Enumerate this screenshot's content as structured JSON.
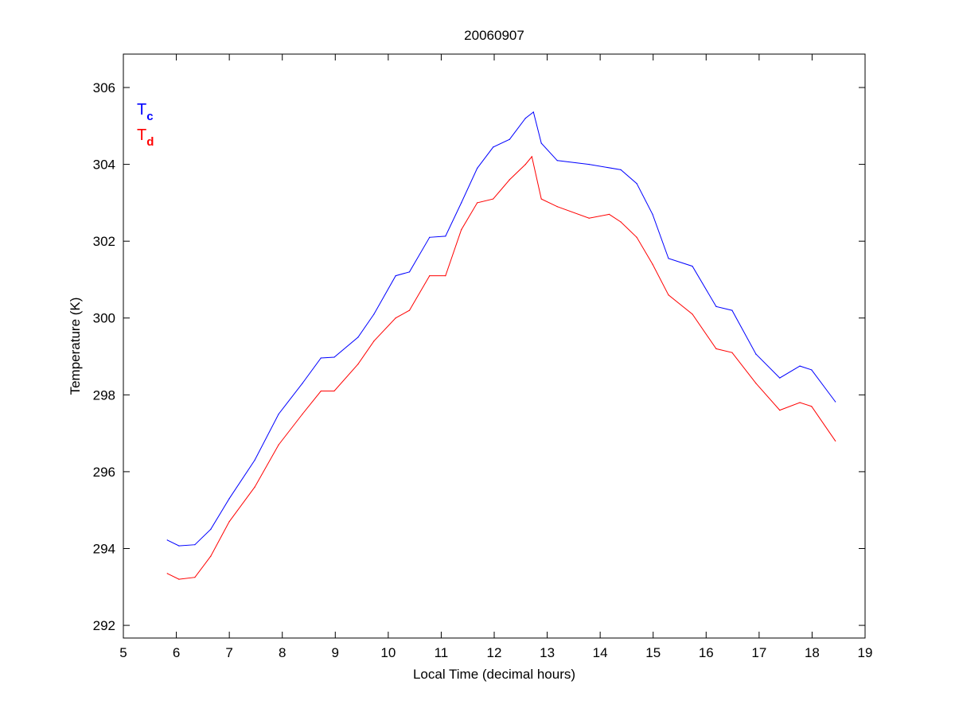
{
  "chart_data": {
    "type": "line",
    "title": "20060907",
    "xlabel": "Local Time (decimal hours)",
    "ylabel": "Temperature (K)",
    "xlim": [
      5,
      19
    ],
    "ylim": [
      291.67,
      306.87
    ],
    "xticks": [
      5,
      6,
      7,
      8,
      9,
      10,
      11,
      12,
      13,
      14,
      15,
      16,
      17,
      18,
      19
    ],
    "yticks": [
      292,
      294,
      296,
      298,
      300,
      302,
      304,
      306
    ],
    "grid": false,
    "legend_placement": "top-left",
    "series": [
      {
        "name": "T",
        "subscript": "c",
        "color": "#0000ff",
        "x": [
          5.83,
          6.05,
          6.35,
          6.65,
          7.0,
          7.48,
          7.93,
          8.38,
          8.73,
          8.98,
          9.43,
          9.73,
          10.14,
          10.4,
          10.78,
          11.08,
          11.38,
          11.68,
          11.98,
          12.29,
          12.59,
          12.74,
          12.89,
          13.19,
          13.79,
          14.39,
          14.69,
          14.99,
          15.29,
          15.74,
          16.19,
          16.49,
          16.94,
          17.39,
          17.77,
          17.99,
          18.44
        ],
        "y": [
          294.22,
          294.07,
          294.1,
          294.5,
          295.3,
          296.3,
          297.5,
          298.3,
          298.96,
          298.98,
          299.5,
          300.1,
          301.1,
          301.2,
          302.1,
          302.13,
          303.0,
          303.9,
          304.45,
          304.65,
          305.2,
          305.36,
          304.55,
          304.1,
          304.0,
          303.86,
          303.5,
          302.7,
          301.55,
          301.35,
          300.3,
          300.2,
          299.06,
          298.44,
          298.75,
          298.65,
          297.82
        ]
      },
      {
        "name": "T",
        "subscript": "d",
        "color": "#ff0000",
        "x": [
          5.83,
          6.05,
          6.35,
          6.65,
          7.0,
          7.48,
          7.93,
          8.38,
          8.73,
          8.98,
          9.43,
          9.73,
          10.14,
          10.4,
          10.78,
          11.08,
          11.38,
          11.68,
          11.98,
          12.29,
          12.59,
          12.71,
          12.89,
          13.19,
          13.79,
          14.17,
          14.39,
          14.69,
          14.99,
          15.29,
          15.74,
          16.19,
          16.49,
          16.94,
          17.39,
          17.77,
          17.99,
          18.44
        ],
        "y": [
          293.35,
          293.2,
          293.25,
          293.8,
          294.7,
          295.6,
          296.7,
          297.5,
          298.1,
          298.1,
          298.8,
          299.4,
          300.0,
          300.2,
          301.1,
          301.1,
          302.3,
          303.0,
          303.1,
          303.6,
          304.0,
          304.2,
          303.1,
          302.9,
          302.6,
          302.7,
          302.5,
          302.1,
          301.4,
          300.6,
          300.1,
          299.2,
          299.1,
          298.3,
          297.6,
          297.8,
          297.7,
          296.8
        ]
      }
    ]
  }
}
